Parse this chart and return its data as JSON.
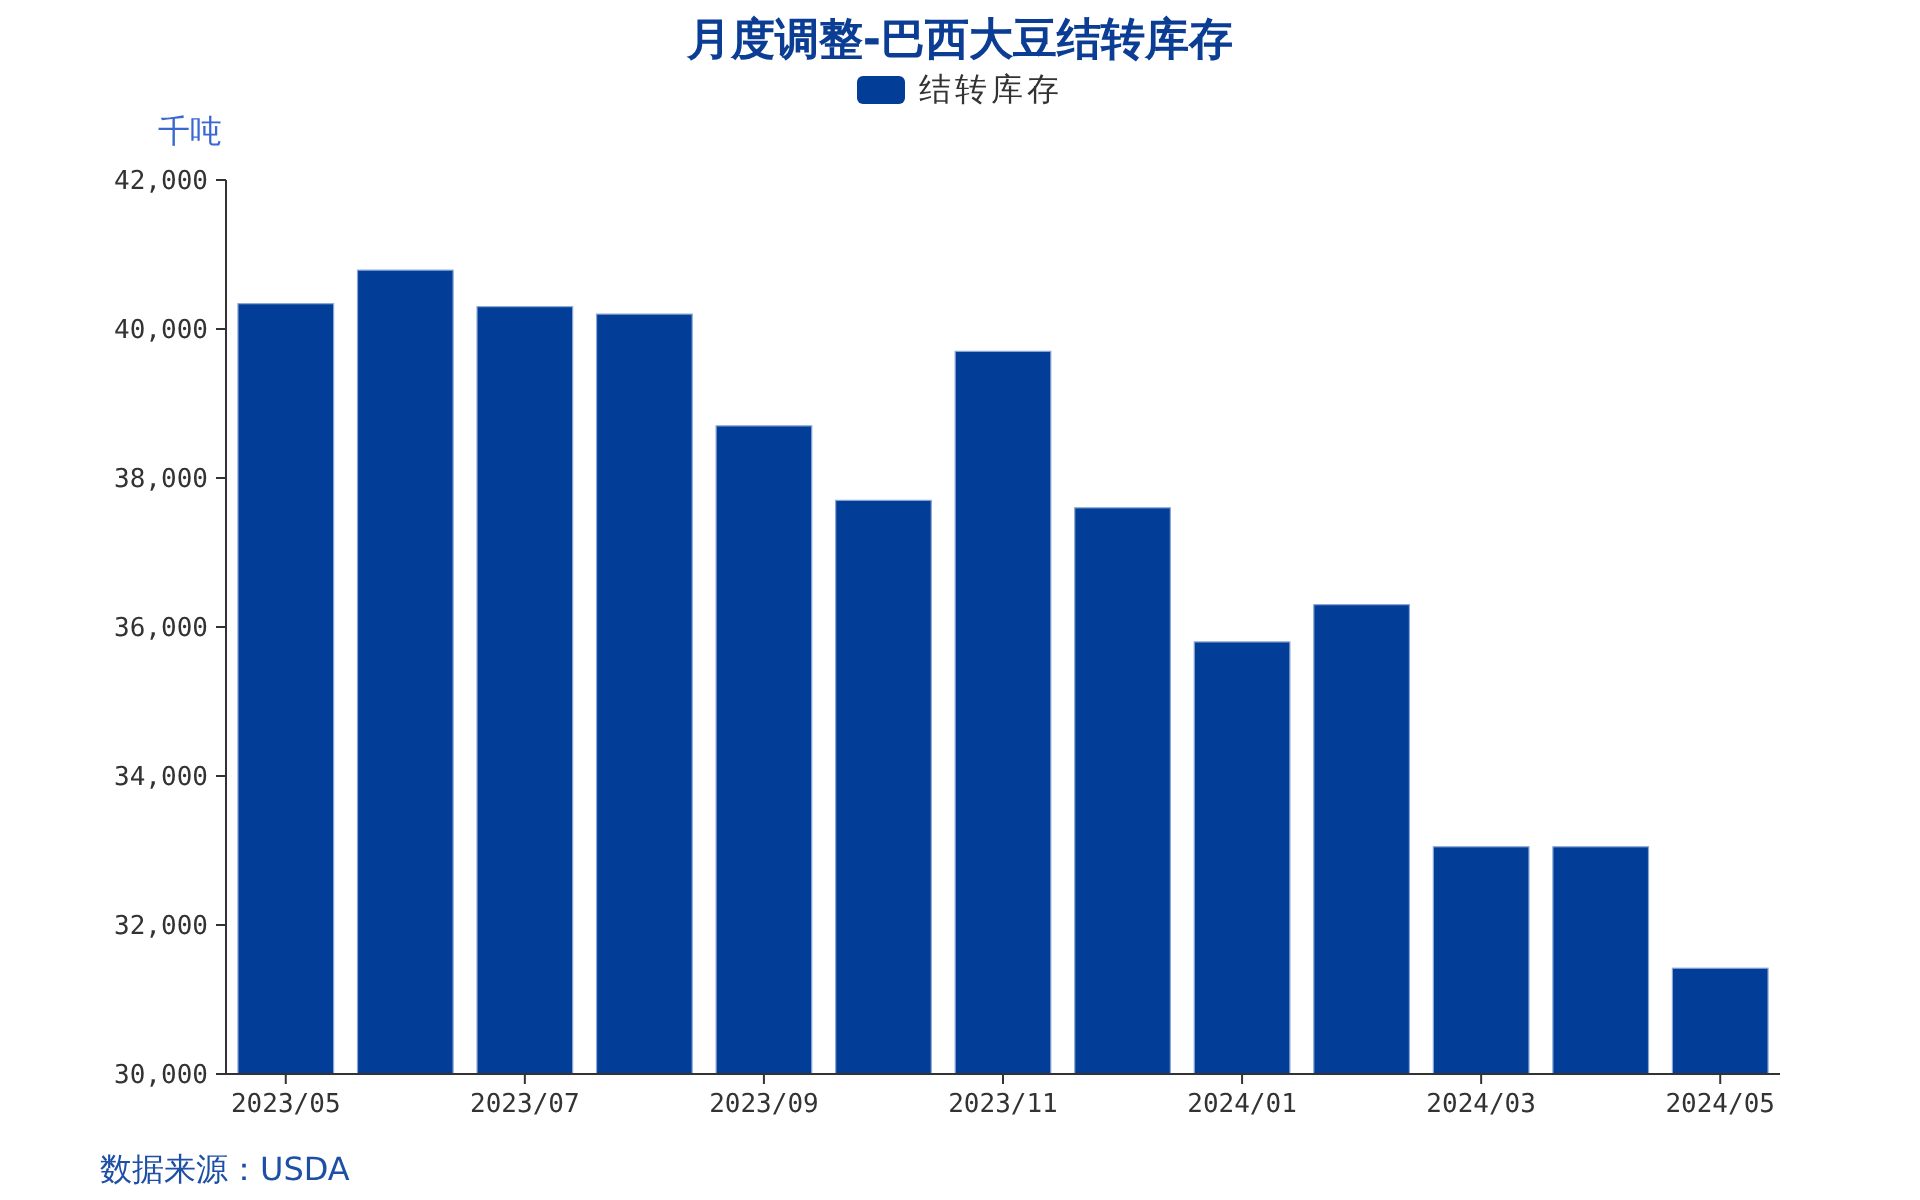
{
  "chart_data": {
    "type": "bar",
    "title": "月度调整-巴西大豆结转库存",
    "ylabel": "千吨",
    "categories": [
      "2023/05",
      null,
      "2023/07",
      null,
      "2023/09",
      null,
      "2023/11",
      null,
      "2024/01",
      null,
      "2024/03",
      null,
      "2024/05"
    ],
    "series": [
      {
        "name": "结转库存",
        "color": "#023e97",
        "values": [
          40340,
          40790,
          40300,
          40200,
          38700,
          37700,
          39700,
          37600,
          35800,
          36300,
          33050,
          33050,
          31420
        ]
      }
    ],
    "ylim": [
      30000,
      42000
    ],
    "yticks": [
      {
        "value": 30000,
        "label": "30,000"
      },
      {
        "value": 32000,
        "label": "32,000"
      },
      {
        "value": 34000,
        "label": "34,000"
      },
      {
        "value": 36000,
        "label": "36,000"
      },
      {
        "value": 38000,
        "label": "38,000"
      },
      {
        "value": 40000,
        "label": "40,000"
      },
      {
        "value": 42000,
        "label": "42,000"
      }
    ],
    "legend": "top",
    "annotations": [
      "数据来源：USDA"
    ]
  }
}
